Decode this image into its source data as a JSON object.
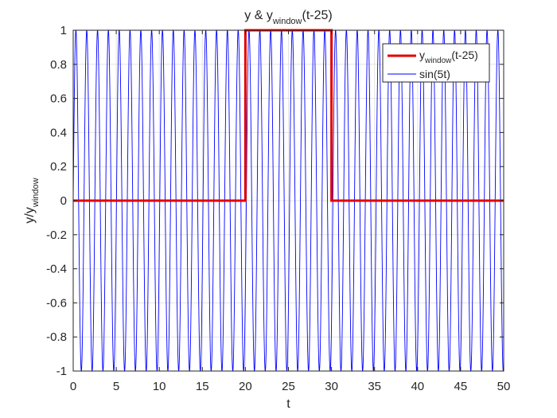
{
  "chart_data": {
    "type": "line",
    "title": {
      "main": "y & y",
      "sub": "window",
      "suffix": "(t-25)"
    },
    "xlabel": "t",
    "ylabel": {
      "main": "y/y",
      "sub": "window"
    },
    "xlim": [
      0,
      50
    ],
    "ylim": [
      -1,
      1
    ],
    "xticks": [
      0,
      5,
      10,
      15,
      20,
      25,
      30,
      35,
      40,
      45,
      50
    ],
    "yticks": [
      -1,
      -0.8,
      -0.6,
      -0.4,
      -0.2,
      0,
      0.2,
      0.4,
      0.6,
      0.8,
      1
    ],
    "grid": true,
    "legend_position": "top-right",
    "series": [
      {
        "legend": {
          "main": "y",
          "sub": "window",
          "suffix": "(t-25)"
        },
        "color": "#e00000",
        "style": "thick",
        "x": [
          0,
          20,
          20,
          30,
          30,
          50
        ],
        "y": [
          0,
          0,
          1,
          1,
          0,
          0
        ]
      },
      {
        "name": "sin(5t)",
        "color": "#0000ff",
        "style": "thin",
        "function": "sin(5t)",
        "x_range": [
          0,
          50
        ]
      }
    ]
  }
}
